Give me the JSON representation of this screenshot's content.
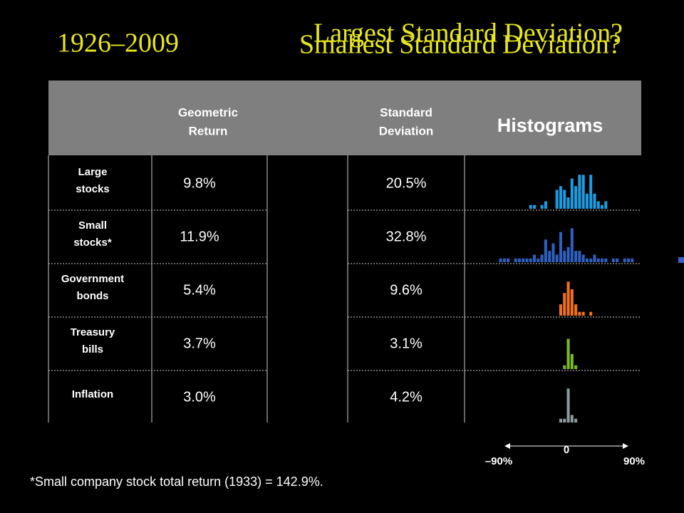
{
  "title": "1926–2009",
  "headlines": [
    "Largest Standard Deviation?",
    "Smallest Standard Deviation?"
  ],
  "table": {
    "headers": [
      [
        "Geometric",
        "Return"
      ],
      [
        "Standard",
        "Deviation"
      ],
      [
        "Histograms"
      ]
    ],
    "rows": [
      {
        "label": [
          "Large",
          "stocks"
        ],
        "geometric_return": "9.8%",
        "std_dev": "20.5%",
        "color": "#1e9be0",
        "histogram": [
          0,
          0,
          0,
          0,
          0,
          0,
          0,
          0,
          1,
          1,
          0,
          1,
          2,
          0,
          0,
          5,
          6,
          5,
          3,
          8,
          6,
          9,
          9,
          4,
          9,
          4,
          2,
          1,
          2,
          0,
          0,
          0,
          0,
          0,
          0,
          0
        ]
      },
      {
        "label": [
          "Small",
          "stocks*"
        ],
        "geometric_return": "11.9%",
        "std_dev": "32.8%",
        "color": "#2f5fbf",
        "histogram": [
          1,
          1,
          1,
          0,
          1,
          1,
          1,
          1,
          1,
          2,
          1,
          2,
          6,
          3,
          5,
          2,
          8,
          3,
          4,
          9,
          3,
          3,
          2,
          1,
          1,
          2,
          1,
          1,
          1,
          0,
          1,
          1,
          0,
          1,
          1,
          1
        ]
      },
      {
        "label": [
          "Government",
          "bonds"
        ],
        "geometric_return": "5.4%",
        "std_dev": "9.6%",
        "color": "#f0701e",
        "histogram": [
          0,
          0,
          0,
          0,
          0,
          0,
          0,
          0,
          0,
          0,
          0,
          0,
          0,
          0,
          0,
          0,
          3,
          6,
          9,
          7,
          3,
          1,
          1,
          0,
          1,
          0,
          0,
          0,
          0,
          0,
          0,
          0,
          0,
          0,
          0,
          0
        ]
      },
      {
        "label": [
          "Treasury",
          "bills"
        ],
        "geometric_return": "3.7%",
        "std_dev": "3.1%",
        "color": "#7ab82a",
        "histogram": [
          0,
          0,
          0,
          0,
          0,
          0,
          0,
          0,
          0,
          0,
          0,
          0,
          0,
          0,
          0,
          0,
          0,
          1,
          8,
          4,
          1,
          0,
          0,
          0,
          0,
          0,
          0,
          0,
          0,
          0,
          0,
          0,
          0,
          0,
          0,
          0
        ]
      },
      {
        "label": [
          "Inflation"
        ],
        "geometric_return": "3.0%",
        "std_dev": "4.2%",
        "color": "#8a9aa0",
        "histogram": [
          0,
          0,
          0,
          0,
          0,
          0,
          0,
          0,
          0,
          0,
          0,
          0,
          0,
          0,
          0,
          0,
          1,
          1,
          9,
          2,
          1,
          0,
          0,
          0,
          0,
          0,
          0,
          0,
          0,
          0,
          0,
          0,
          0,
          0,
          0,
          0
        ]
      }
    ]
  },
  "histogram_axis": {
    "xlim": [
      -90,
      90
    ],
    "ticks": [
      {
        "value": -90,
        "label": "–90%"
      },
      0,
      {
        "value": 90,
        "label": "90%"
      }
    ]
  },
  "footnote": "*Small company stock total return (1933) = 142.9%."
}
